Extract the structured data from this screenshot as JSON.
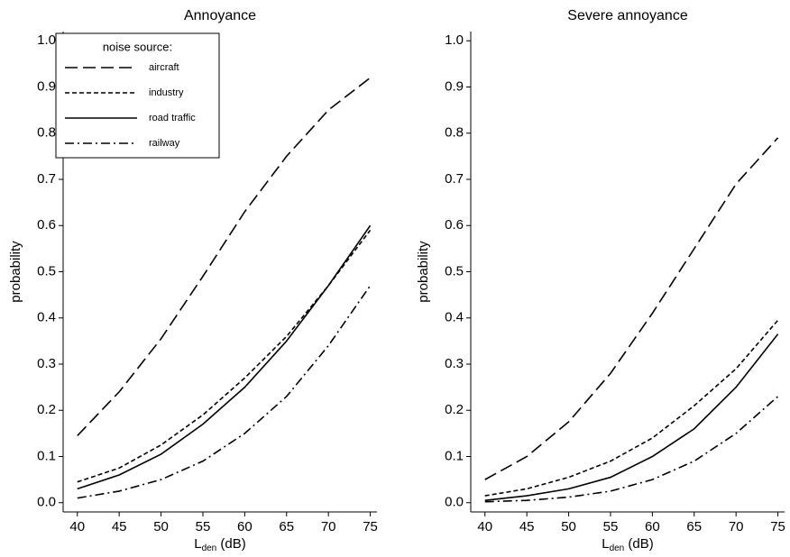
{
  "chart_data": [
    {
      "type": "line",
      "title": "Annoyance",
      "ylabel": "probability",
      "xlabel": [
        "L",
        "den",
        " (dB)"
      ],
      "x": [
        40,
        45,
        50,
        55,
        60,
        65,
        70,
        75
      ],
      "xlim": [
        38.3,
        75.8
      ],
      "xticks": [
        40,
        45,
        50,
        55,
        60,
        65,
        70,
        75
      ],
      "ylim": [
        -0.02,
        1.02
      ],
      "yticks": [
        {
          "value": 0,
          "label": "0.0"
        },
        0.1,
        0.2,
        0.3,
        0.4,
        0.5,
        0.6,
        0.7,
        0.8,
        0.9,
        {
          "value": 1,
          "label": "1.0"
        }
      ],
      "legend_title": "noise source:",
      "legend": "upper left",
      "series": [
        {
          "name": "aircraft",
          "color": "#000000",
          "dash": "14,6",
          "values": [
            0.145,
            0.24,
            0.355,
            0.49,
            0.63,
            0.75,
            0.85,
            0.92
          ]
        },
        {
          "name": "industry",
          "color": "#000000",
          "dash": "5,3",
          "values": [
            0.045,
            0.075,
            0.125,
            0.19,
            0.27,
            0.36,
            0.47,
            0.59
          ]
        },
        {
          "name": "road traffic",
          "color": "#000000",
          "dash": "none",
          "values": [
            0.03,
            0.06,
            0.105,
            0.17,
            0.25,
            0.35,
            0.47,
            0.6
          ]
        },
        {
          "name": "railway",
          "color": "#000000",
          "dash": "10,4,2,4",
          "values": [
            0.01,
            0.025,
            0.05,
            0.09,
            0.15,
            0.23,
            0.34,
            0.47
          ]
        }
      ]
    },
    {
      "type": "line",
      "title": "Severe annoyance",
      "ylabel": "probability",
      "xlabel": [
        "L",
        "den",
        " (dB)"
      ],
      "x": [
        40,
        45,
        50,
        55,
        60,
        65,
        70,
        75
      ],
      "xlim": [
        38.3,
        75.8
      ],
      "xticks": [
        40,
        45,
        50,
        55,
        60,
        65,
        70,
        75
      ],
      "ylim": [
        -0.02,
        1.02
      ],
      "yticks": [
        {
          "value": 0,
          "label": "0.0"
        },
        0.1,
        0.2,
        0.3,
        0.4,
        0.5,
        0.6,
        0.7,
        0.8,
        0.9,
        {
          "value": 1,
          "label": "1.0"
        }
      ],
      "series": [
        {
          "color": "#000000",
          "dash": "14,6",
          "values": [
            0.05,
            0.1,
            0.175,
            0.28,
            0.41,
            0.55,
            0.69,
            0.79
          ]
        },
        {
          "color": "#000000",
          "dash": "5,3",
          "values": [
            0.015,
            0.03,
            0.055,
            0.09,
            0.14,
            0.21,
            0.29,
            0.395
          ]
        },
        {
          "color": "#000000",
          "dash": "none",
          "values": [
            0.005,
            0.015,
            0.03,
            0.055,
            0.1,
            0.16,
            0.25,
            0.365
          ]
        },
        {
          "color": "#000000",
          "dash": "10,4,2,4",
          "values": [
            0.002,
            0.005,
            0.012,
            0.025,
            0.05,
            0.09,
            0.15,
            0.23
          ]
        }
      ]
    }
  ]
}
